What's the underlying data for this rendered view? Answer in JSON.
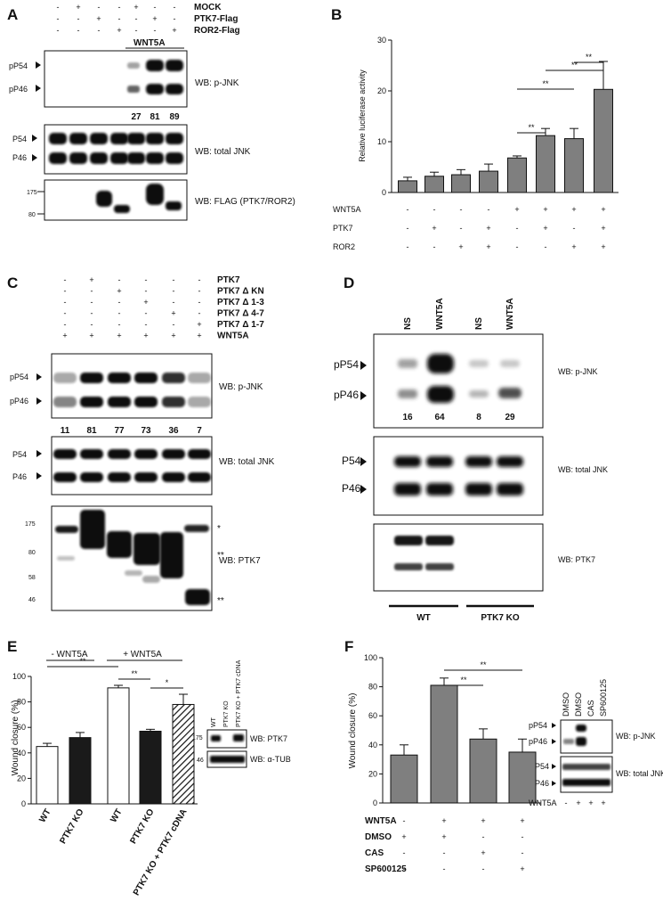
{
  "panelA": {
    "label": "A",
    "rows": [
      {
        "name": "MOCK",
        "signs": [
          "-",
          "+",
          "-",
          "-",
          "+",
          "-",
          "-"
        ]
      },
      {
        "name": "PTK7-Flag",
        "signs": [
          "-",
          "-",
          "+",
          "-",
          "-",
          "+",
          "-"
        ]
      },
      {
        "name": "ROR2-Flag",
        "signs": [
          "-",
          "-",
          "-",
          "+",
          "-",
          "-",
          "+"
        ]
      }
    ],
    "treatment": "WNT5A",
    "blots": [
      {
        "label": "WB: p-JNK",
        "markers": [
          "pP54",
          "pP46"
        ]
      },
      {
        "label": "WB: total JNK",
        "markers": [
          "P54",
          "P46"
        ]
      },
      {
        "label": "WB: FLAG (PTK7/ROR2)",
        "markers": [
          "175",
          "80"
        ]
      }
    ],
    "quant": [
      "27",
      "81",
      "89"
    ]
  },
  "panelB": {
    "label": "B",
    "rows": [
      {
        "name": "WNT5A",
        "signs": [
          "-",
          "-",
          "-",
          "-",
          "+",
          "+",
          "+",
          "+"
        ]
      },
      {
        "name": "PTK7",
        "signs": [
          "-",
          "+",
          "-",
          "+",
          "-",
          "+",
          "-",
          "+"
        ]
      },
      {
        "name": "ROR2",
        "signs": [
          "-",
          "-",
          "+",
          "+",
          "-",
          "-",
          "+",
          "+"
        ]
      }
    ],
    "sig": [
      "**",
      "**",
      "**",
      "**"
    ]
  },
  "panelC": {
    "label": "C",
    "rows": [
      {
        "name": "PTK7",
        "signs": [
          "-",
          "+",
          "-",
          "-",
          "-",
          "-"
        ]
      },
      {
        "name": "PTK7 Δ KN",
        "signs": [
          "-",
          "-",
          "+",
          "-",
          "-",
          "-"
        ]
      },
      {
        "name": "PTK7 Δ 1-3",
        "signs": [
          "-",
          "-",
          "-",
          "+",
          "-",
          "-"
        ]
      },
      {
        "name": "PTK7 Δ 4-7",
        "signs": [
          "-",
          "-",
          "-",
          "-",
          "+",
          "-"
        ]
      },
      {
        "name": "PTK7 Δ 1-7",
        "signs": [
          "-",
          "-",
          "-",
          "-",
          "-",
          "+"
        ]
      },
      {
        "name": "WNT5A",
        "signs": [
          "+",
          "+",
          "+",
          "+",
          "+",
          "+"
        ]
      }
    ],
    "blots": [
      {
        "label": "WB: p-JNK",
        "markers": [
          "pP54",
          "pP46"
        ]
      },
      {
        "label": "WB: total JNK",
        "markers": [
          "P54",
          "P46"
        ]
      },
      {
        "label": "WB: PTK7",
        "markers": [
          "175",
          "80",
          "58",
          "46"
        ]
      }
    ],
    "quant": [
      "11",
      "81",
      "77",
      "73",
      "36",
      "7"
    ],
    "stars": [
      "*",
      "**",
      "**"
    ]
  },
  "panelD": {
    "label": "D",
    "lanes": [
      "NS",
      "WNT5A",
      "NS",
      "WNT5A"
    ],
    "blots": [
      {
        "label": "WB: p-JNK",
        "markers": [
          "pP54",
          "pP46"
        ]
      },
      {
        "label": "WB: total JNK",
        "markers": [
          "P54",
          "P46"
        ]
      },
      {
        "label": "WB: PTK7",
        "markers": []
      }
    ],
    "quant": [
      "16",
      "64",
      "8",
      "29"
    ],
    "groups": [
      "WT",
      "PTK7 KO"
    ]
  },
  "panelE": {
    "label": "E",
    "groups": [
      "- WNT5A",
      "+ WNT5A"
    ],
    "sig": [
      "**",
      "**",
      "*"
    ],
    "inset_lanes": [
      "WT",
      "PTK7 KO",
      "PTK7 KO + PTK7 cDNA"
    ],
    "inset_blots": [
      {
        "label": "WB: PTK7",
        "marker": "175"
      },
      {
        "label": "WB: α-TUB",
        "marker": "46"
      }
    ]
  },
  "panelF": {
    "label": "F",
    "rows": [
      {
        "name": "WNT5A",
        "signs": [
          "-",
          "+",
          "+",
          "+"
        ]
      },
      {
        "name": "DMSO",
        "signs": [
          "+",
          "+",
          "-",
          "-"
        ]
      },
      {
        "name": "CAS",
        "signs": [
          "-",
          "-",
          "+",
          "-"
        ]
      },
      {
        "name": "SP600125",
        "signs": [
          "-",
          "-",
          "-",
          "+"
        ]
      }
    ],
    "sig": [
      "**",
      "**"
    ],
    "inset_lanes": [
      "DMSO",
      "DMSO",
      "CAS",
      "SP600125"
    ],
    "inset_wnt": {
      "name": "WNT5A",
      "signs": [
        "-",
        "+",
        "+",
        "+"
      ]
    },
    "inset_blots": [
      {
        "label": "WB: p-JNK",
        "markers": [
          "pP54",
          "pP46"
        ]
      },
      {
        "label": "WB: total JNK",
        "markers": [
          "P54",
          "P46"
        ]
      }
    ]
  },
  "chart_data": [
    {
      "type": "bar",
      "panel": "B",
      "ylabel": "Relative luciferase activity",
      "ylim": [
        0,
        30
      ],
      "yticks": [
        "0",
        "10",
        "20",
        "30"
      ],
      "values": [
        2.3,
        3.2,
        3.5,
        4.2,
        6.8,
        11.2,
        10.6,
        20.3
      ],
      "errors": [
        0.7,
        0.8,
        1.0,
        1.4,
        0.4,
        1.4,
        2.0,
        5.5
      ],
      "color": "#7f7f7f"
    },
    {
      "type": "bar",
      "panel": "E",
      "ylabel": "Wound closure (%)",
      "ylim": [
        0,
        100
      ],
      "yticks": [
        "0",
        "20",
        "40",
        "60",
        "80",
        "100"
      ],
      "categories": [
        "WT",
        "PTK7 KO",
        "WT",
        "PTK7 KO",
        "PTK7 KO + PTK7 cDNA"
      ],
      "values": [
        45,
        52,
        91,
        57,
        78
      ],
      "errors": [
        2.5,
        4,
        2,
        1.5,
        8
      ],
      "fills": [
        "#ffffff",
        "#1a1a1a",
        "#ffffff",
        "#1a1a1a",
        "hatch"
      ]
    },
    {
      "type": "bar",
      "panel": "F",
      "ylabel": "Wound closure (%)",
      "ylim": [
        0,
        100
      ],
      "yticks": [
        "0",
        "20",
        "40",
        "60",
        "80",
        "100"
      ],
      "values": [
        33,
        81,
        44,
        35
      ],
      "errors": [
        7,
        5,
        7,
        9
      ],
      "color": "#7f7f7f"
    }
  ]
}
